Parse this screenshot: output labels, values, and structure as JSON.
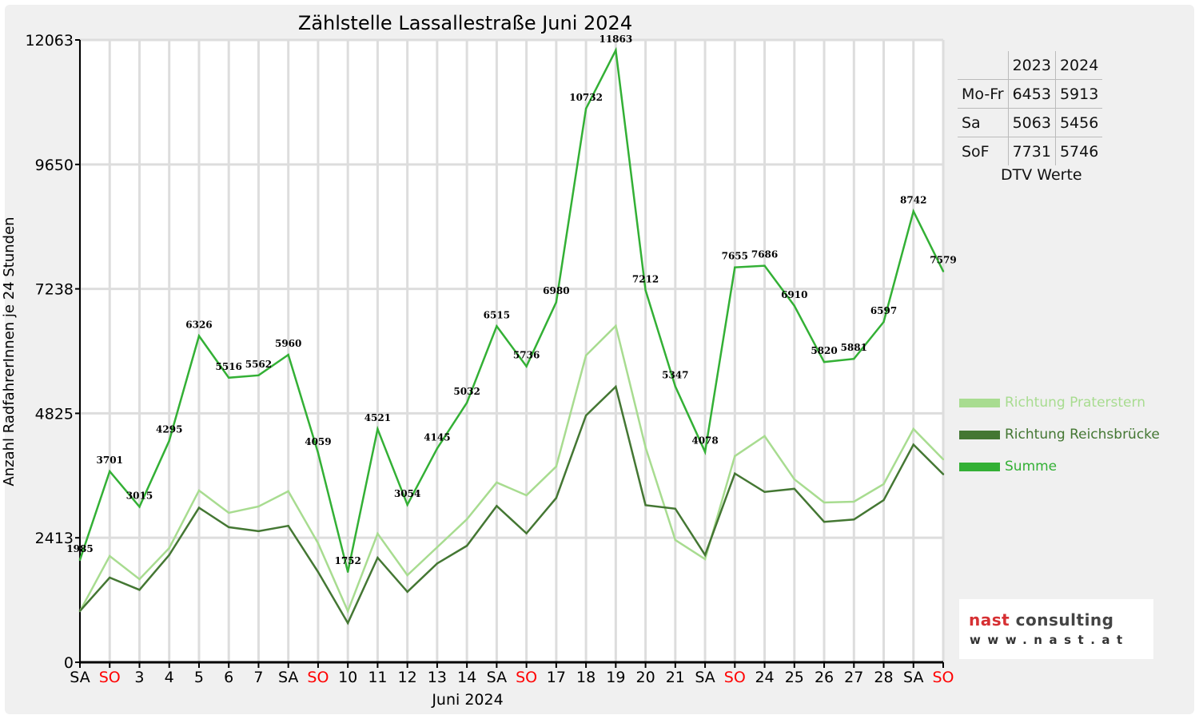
{
  "chart_data": {
    "type": "line",
    "title": "Zählstelle Lassallestraße Juni 2024",
    "xlabel": "Juni 2024",
    "ylabel": "Anzahl RadfahrerInnen je 24 Stunden",
    "ylim": [
      0,
      12063
    ],
    "yticks": [
      0,
      2413,
      4825,
      7238,
      9650,
      12063
    ],
    "categories": [
      "SA",
      "SO",
      "3",
      "4",
      "5",
      "6",
      "7",
      "SA",
      "SO",
      "10",
      "11",
      "12",
      "13",
      "14",
      "SA",
      "SO",
      "17",
      "18",
      "19",
      "20",
      "21",
      "SA",
      "SO",
      "24",
      "25",
      "26",
      "27",
      "28",
      "SA",
      "SO"
    ],
    "weekend_categories": [
      "SO"
    ],
    "grid": true,
    "legend_position": "right",
    "series": [
      {
        "name": "Richtung Praterstern",
        "color": "#a8dc90",
        "values": [
          991,
          2060,
          1611,
          2215,
          3330,
          2897,
          3020,
          3315,
          2308,
          991,
          2494,
          1688,
          2230,
          2773,
          3485,
          3237,
          3795,
          5948,
          6521,
          4167,
          2370,
          1998,
          3996,
          4384,
          3547,
          3098,
          3113,
          3454,
          4523,
          3934
        ]
      },
      {
        "name": "Richtung Reichsbrücke",
        "color": "#447733",
        "values": [
          994,
          1641,
          1404,
          2080,
          2996,
          2619,
          2542,
          2645,
          1751,
          761,
          2027,
          1366,
          1915,
          2259,
          3030,
          2499,
          3185,
          4784,
          5342,
          3045,
          2977,
          2080,
          3659,
          3302,
          3363,
          2722,
          2768,
          3143,
          4219,
          3645
        ]
      },
      {
        "name": "Summe",
        "color": "#33b035",
        "values": [
          1985,
          3701,
          3015,
          4295,
          6326,
          5516,
          5562,
          5960,
          4059,
          1752,
          4521,
          3054,
          4145,
          5032,
          6515,
          5736,
          6980,
          10732,
          11863,
          7212,
          5347,
          4078,
          7655,
          7686,
          6910,
          5820,
          5881,
          6597,
          8742,
          7579
        ]
      }
    ]
  },
  "dtv": {
    "headers": [
      "2023",
      "2024"
    ],
    "rows": [
      {
        "label": "Mo-Fr",
        "v2023": "6453",
        "v2024": "5913"
      },
      {
        "label": "Sa",
        "v2023": "5063",
        "v2024": "5456"
      },
      {
        "label": "SoF",
        "v2023": "7731",
        "v2024": "5746"
      }
    ],
    "caption": "DTV Werte"
  },
  "logo": {
    "line1a": "nast",
    "line1b": "consulting",
    "line2": "www.nast.at",
    "red": "#d63033",
    "dark": "#444444"
  },
  "colors": {
    "weekend": "#ff0000",
    "grid": "#dddddd"
  }
}
